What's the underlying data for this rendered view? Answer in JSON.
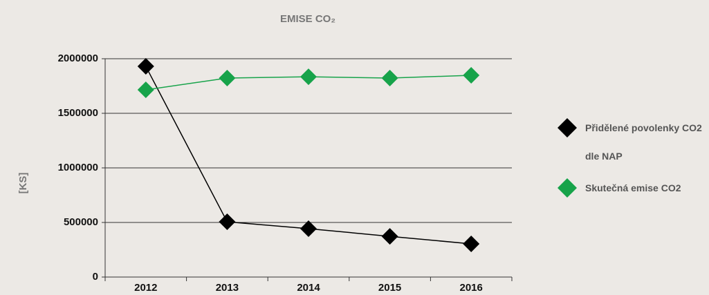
{
  "chart_data": {
    "type": "line",
    "title": "EMISE CO₂",
    "y_label": "[KS]",
    "categories": [
      "2012",
      "2013",
      "2014",
      "2015",
      "2016"
    ],
    "series": [
      {
        "name": "Přidělené povolenky CO2 dle NAP",
        "color": "#000000",
        "values": [
          1930000,
          506000,
          443000,
          373000,
          304000
        ]
      },
      {
        "name": "Skutečná emise CO2",
        "color": "#17a34a",
        "values": [
          1715000,
          1823000,
          1835000,
          1823000,
          1848000
        ]
      }
    ],
    "ylim": [
      0,
      2000000
    ],
    "yticks": [
      0,
      500000,
      1000000,
      1500000,
      2000000
    ],
    "grid": true,
    "legend": "right"
  }
}
